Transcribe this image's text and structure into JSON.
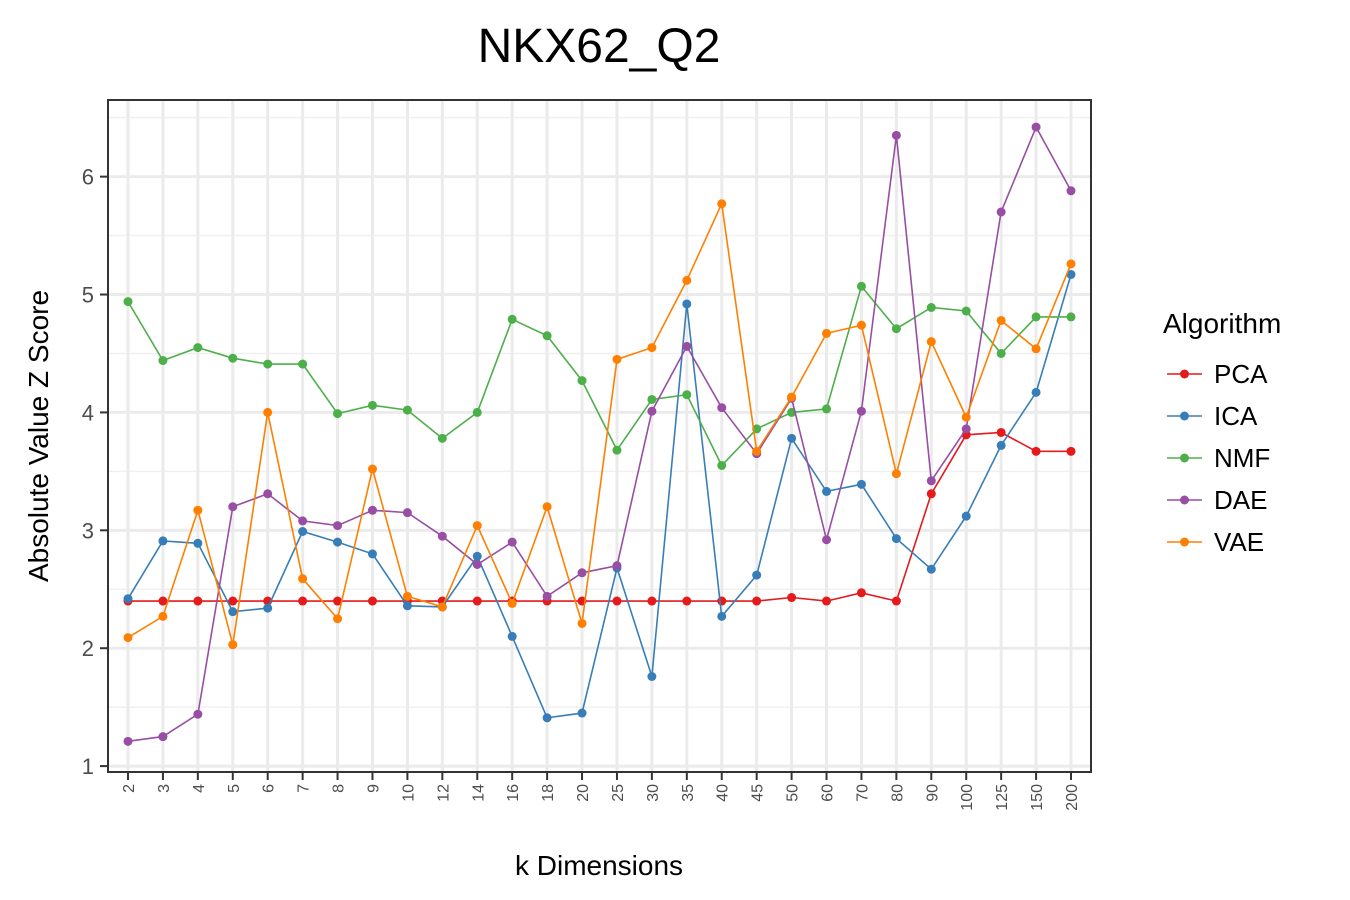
{
  "chart_data": {
    "type": "line",
    "title": "NKX62_Q2",
    "xlabel": "k Dimensions",
    "ylabel": "Absolute Value Z Score",
    "categories": [
      "2",
      "3",
      "4",
      "5",
      "6",
      "7",
      "8",
      "9",
      "10",
      "12",
      "14",
      "16",
      "18",
      "20",
      "25",
      "30",
      "35",
      "40",
      "45",
      "50",
      "60",
      "70",
      "80",
      "90",
      "100",
      "125",
      "150",
      "200"
    ],
    "ylim": [
      0.95,
      6.65
    ],
    "yticks": [
      1,
      2,
      3,
      4,
      5,
      6
    ],
    "grid": true,
    "legend": {
      "title": "Algorithm",
      "position": "right"
    },
    "series": [
      {
        "name": "PCA",
        "color": "#e41a1c",
        "values": [
          2.4,
          2.4,
          2.4,
          2.4,
          2.4,
          2.4,
          2.4,
          2.4,
          2.4,
          2.4,
          2.4,
          2.4,
          2.4,
          2.4,
          2.4,
          2.4,
          2.4,
          2.4,
          2.4,
          2.43,
          2.4,
          2.47,
          2.4,
          3.31,
          3.81,
          3.83,
          3.67,
          3.67
        ]
      },
      {
        "name": "ICA",
        "color": "#377eb8",
        "values": [
          2.42,
          2.91,
          2.89,
          2.31,
          2.34,
          2.99,
          2.9,
          2.8,
          2.36,
          2.35,
          2.78,
          2.1,
          1.41,
          1.45,
          2.68,
          1.76,
          4.92,
          2.27,
          2.62,
          3.78,
          3.33,
          3.39,
          2.93,
          2.67,
          3.12,
          3.72,
          4.17,
          5.17
        ]
      },
      {
        "name": "NMF",
        "color": "#4daf4a",
        "values": [
          4.94,
          4.44,
          4.55,
          4.46,
          4.41,
          4.41,
          3.99,
          4.06,
          4.02,
          3.78,
          4.0,
          4.79,
          4.65,
          4.27,
          3.68,
          4.11,
          4.15,
          3.55,
          3.86,
          4.0,
          4.03,
          5.07,
          4.71,
          4.89,
          4.86,
          4.5,
          4.81,
          4.81
        ]
      },
      {
        "name": "DAE",
        "color": "#984ea3",
        "values": [
          1.21,
          1.25,
          1.44,
          3.2,
          3.31,
          3.08,
          3.04,
          3.17,
          3.15,
          2.95,
          2.71,
          2.9,
          2.44,
          2.64,
          2.7,
          4.01,
          4.56,
          4.04,
          3.65,
          4.12,
          2.92,
          4.01,
          6.35,
          3.42,
          3.86,
          5.7,
          6.42,
          5.88
        ]
      },
      {
        "name": "VAE",
        "color": "#ff7f00",
        "values": [
          2.09,
          2.27,
          3.17,
          2.03,
          4.0,
          2.59,
          2.25,
          3.52,
          2.44,
          2.35,
          3.04,
          2.38,
          3.2,
          2.21,
          4.45,
          4.55,
          5.12,
          5.77,
          3.67,
          4.13,
          4.67,
          4.74,
          3.48,
          4.6,
          3.96,
          4.78,
          4.54,
          5.26
        ]
      }
    ]
  }
}
